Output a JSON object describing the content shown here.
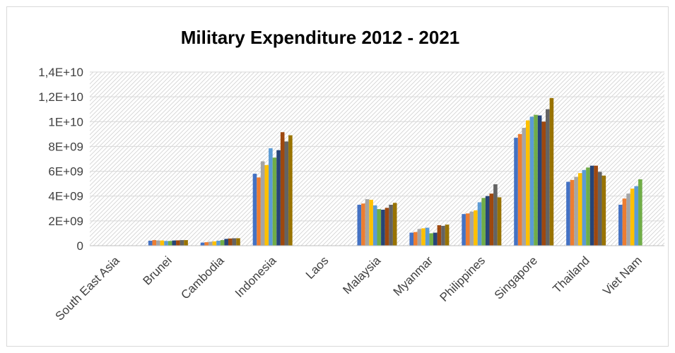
{
  "chart_data": {
    "type": "bar",
    "title": "Military Expenditure 2012 - 2021",
    "xlabel": "",
    "ylabel": "",
    "ylim": [
      0,
      14000000000
    ],
    "yticks": [
      0,
      2000000000,
      4000000000,
      6000000000,
      8000000000,
      10000000000,
      12000000000,
      14000000000
    ],
    "ytick_labels": [
      "0",
      "2E+09",
      "4E+09",
      "6E+09",
      "8E+09",
      "1E+10",
      "1,2E+10",
      "1,4E+10"
    ],
    "grid": true,
    "legend": "none",
    "categories": [
      "South East Asia",
      "Brunei",
      "Cambodia",
      "Indonesia",
      "Laos",
      "Malaysia",
      "Myanmar",
      "Philippines",
      "Singapore",
      "Thailand",
      "Viet Nam"
    ],
    "colors": [
      "#4472C4",
      "#ED7D31",
      "#A5A5A5",
      "#FFC000",
      "#5B9BD5",
      "#70AD47",
      "#264478",
      "#9E480E",
      "#636363",
      "#997300"
    ],
    "series": [
      {
        "values": [
          null,
          400000000,
          250000000,
          5800000000,
          null,
          3300000000,
          1050000000,
          2550000000,
          8700000000,
          5150000000,
          3300000000
        ]
      },
      {
        "values": [
          null,
          450000000,
          280000000,
          5500000000,
          null,
          3400000000,
          1100000000,
          2600000000,
          9000000000,
          5300000000,
          3800000000
        ]
      },
      {
        "values": [
          null,
          420000000,
          320000000,
          6800000000,
          null,
          3750000000,
          1350000000,
          2750000000,
          9500000000,
          5550000000,
          4200000000
        ]
      },
      {
        "values": [
          null,
          420000000,
          350000000,
          6500000000,
          null,
          3700000000,
          1400000000,
          2850000000,
          10100000000,
          5850000000,
          4600000000
        ]
      },
      {
        "values": [
          null,
          380000000,
          400000000,
          7850000000,
          null,
          3250000000,
          1450000000,
          3500000000,
          10400000000,
          6100000000,
          4800000000
        ]
      },
      {
        "values": [
          null,
          380000000,
          450000000,
          7100000000,
          null,
          2950000000,
          1000000000,
          3850000000,
          10550000000,
          6300000000,
          5350000000
        ]
      },
      {
        "values": [
          null,
          420000000,
          550000000,
          7700000000,
          null,
          2900000000,
          1050000000,
          4000000000,
          10500000000,
          6450000000,
          null
        ]
      },
      {
        "values": [
          null,
          430000000,
          580000000,
          9150000000,
          null,
          3050000000,
          1650000000,
          4200000000,
          10000000000,
          6450000000,
          null
        ]
      },
      {
        "values": [
          null,
          450000000,
          600000000,
          8400000000,
          null,
          3300000000,
          1600000000,
          4950000000,
          11000000000,
          5950000000,
          null
        ]
      },
      {
        "values": [
          null,
          450000000,
          600000000,
          8900000000,
          null,
          3450000000,
          1700000000,
          3900000000,
          11900000000,
          5650000000,
          null
        ]
      }
    ]
  }
}
